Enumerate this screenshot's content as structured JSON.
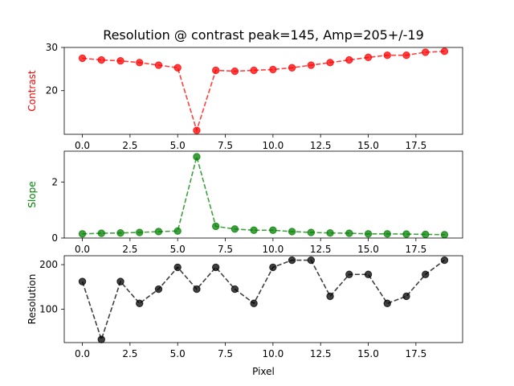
{
  "chart_data": [
    {
      "type": "line",
      "title": "Resolution @ contrast peak=145, Amp=205+/-19",
      "xlabel": "",
      "ylabel": "Contrast",
      "ylabel_color": "#ff0000",
      "color": "#ff0000",
      "linestyle": "dashed",
      "marker": "circle",
      "xlim": [
        -0.95,
        19.95
      ],
      "ylim": [
        9.9,
        30.0
      ],
      "xticks": [
        0,
        2.5,
        5,
        7.5,
        10,
        12.5,
        15,
        17.5
      ],
      "xtick_labels": [
        "0.0",
        "2.5",
        "5.0",
        "7.5",
        "10.0",
        "12.5",
        "15.0",
        "17.5"
      ],
      "yticks": [
        20,
        30
      ],
      "ytick_labels": [
        "20",
        "30"
      ],
      "x": [
        0,
        1,
        2,
        3,
        4,
        5,
        6,
        7,
        8,
        9,
        10,
        11,
        12,
        13,
        14,
        15,
        16,
        17,
        18,
        19
      ],
      "y": [
        27.5,
        27.1,
        26.9,
        26.5,
        25.9,
        25.3,
        10.8,
        24.7,
        24.5,
        24.7,
        24.9,
        25.3,
        25.9,
        26.5,
        27.1,
        27.7,
        28.2,
        28.2,
        28.9,
        29.1
      ]
    },
    {
      "type": "line",
      "title": "",
      "xlabel": "",
      "ylabel": "Slope",
      "ylabel_color": "#008000",
      "color": "#008000",
      "linestyle": "dashed",
      "marker": "circle",
      "xlim": [
        -0.95,
        19.95
      ],
      "ylim": [
        0,
        3.1
      ],
      "xticks": [
        0,
        2.5,
        5,
        7.5,
        10,
        12.5,
        15,
        17.5
      ],
      "xtick_labels": [
        "0.0",
        "2.5",
        "5.0",
        "7.5",
        "10.0",
        "12.5",
        "15.0",
        "17.5"
      ],
      "yticks": [
        0,
        2
      ],
      "ytick_labels": [
        "0",
        "2"
      ],
      "x": [
        0,
        1,
        2,
        3,
        4,
        5,
        6,
        7,
        8,
        9,
        10,
        11,
        12,
        13,
        14,
        15,
        16,
        17,
        18,
        19
      ],
      "y": [
        0.15,
        0.17,
        0.18,
        0.2,
        0.23,
        0.25,
        2.9,
        0.42,
        0.32,
        0.28,
        0.28,
        0.23,
        0.2,
        0.18,
        0.17,
        0.15,
        0.15,
        0.14,
        0.13,
        0.12
      ]
    },
    {
      "type": "line",
      "title": "",
      "xlabel": "Pixel",
      "ylabel": "Resolution",
      "ylabel_color": "#000000",
      "color": "#000000",
      "linestyle": "dashed",
      "marker": "circle",
      "xlim": [
        -0.95,
        19.95
      ],
      "ylim": [
        25,
        220
      ],
      "xticks": [
        0,
        2.5,
        5,
        7.5,
        10,
        12.5,
        15,
        17.5
      ],
      "xtick_labels": [
        "0.0",
        "2.5",
        "5.0",
        "7.5",
        "10.0",
        "12.5",
        "15.0",
        "17.5"
      ],
      "yticks": [
        100,
        200
      ],
      "ytick_labels": [
        "100",
        "200"
      ],
      "x": [
        0,
        1,
        2,
        3,
        4,
        5,
        6,
        7,
        8,
        9,
        10,
        11,
        12,
        13,
        14,
        15,
        16,
        17,
        18,
        19
      ],
      "y": [
        162,
        32,
        162,
        113,
        145,
        194,
        145,
        194,
        145,
        113,
        194,
        210,
        210,
        129,
        178,
        178,
        113,
        129,
        178,
        210
      ]
    }
  ]
}
